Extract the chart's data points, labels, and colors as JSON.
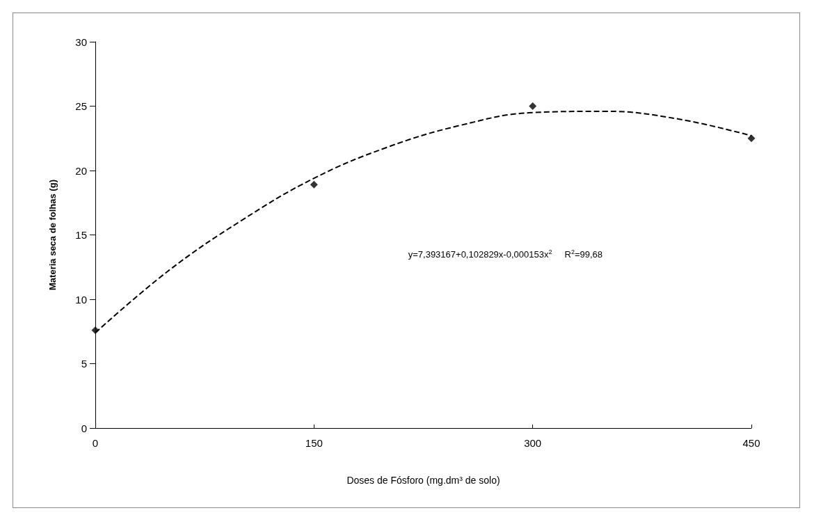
{
  "chart_data": {
    "type": "scatter",
    "xlabel": "Doses de Fósforo (mg.dm³ de solo)",
    "ylabel": "Materia seca de folhas (g)",
    "xlim": [
      0,
      450
    ],
    "xticks": [
      0,
      150,
      300,
      450
    ],
    "ylim": [
      0,
      30
    ],
    "yticks": [
      0,
      5,
      10,
      15,
      20,
      25,
      30
    ],
    "grid": false,
    "annotations": [
      "y=7,393167+0,102829x-0,000153x$^{2}$     R$^{2}$=99,68"
    ],
    "series": [
      {
        "color": "#000000",
        "marker": "diamond",
        "x": [
          0,
          150,
          300,
          450
        ],
        "values": [
          7.6,
          18.9,
          25.0,
          22.5
        ]
      },
      {
        "type": "line",
        "color": "#000000",
        "marker": "none",
        "line_style": "dashed",
        "x": [
          0,
          50,
          100,
          150,
          200,
          250,
          300,
          350,
          400,
          450
        ],
        "values": [
          7.4,
          12.2,
          16.1,
          19.4,
          21.8,
          23.5,
          24.5,
          24.6,
          24.0,
          22.7
        ]
      }
    ]
  }
}
